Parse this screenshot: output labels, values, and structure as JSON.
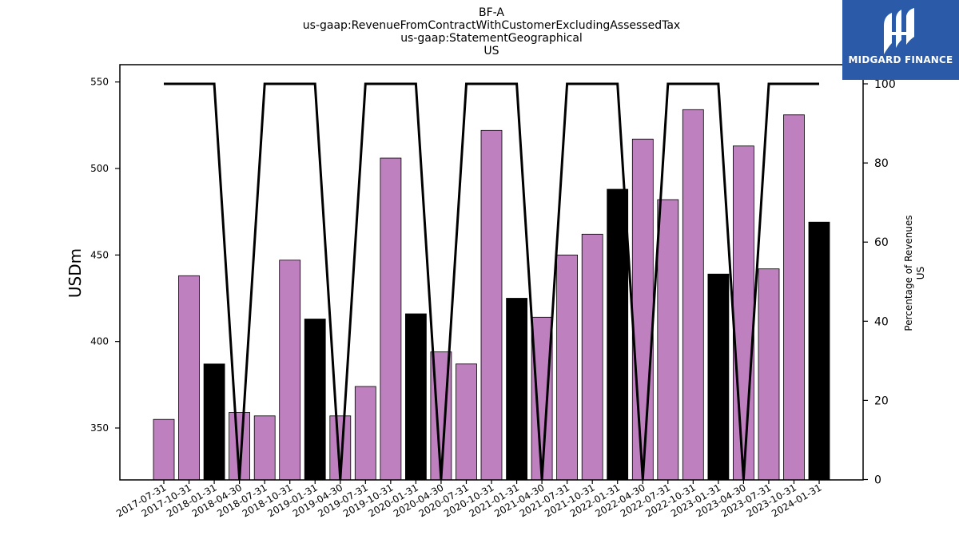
{
  "titles": [
    "BF-A",
    "us-gaap:RevenueFromContractWithCustomerExcludingAssessedTax",
    "us-gaap:StatementGeographical",
    "US"
  ],
  "logo": {
    "text": "MIDGARD FINANCE",
    "icon": "midgard-logo-icon",
    "bg_color": "#2b5aa8"
  },
  "chart_data": {
    "type": "bar",
    "categories": [
      "2017-07-31",
      "2017-10-31",
      "2018-01-31",
      "2018-04-30",
      "2018-07-31",
      "2018-10-31",
      "2019-01-31",
      "2019-04-30",
      "2019-07-31",
      "2019-10-31",
      "2020-01-31",
      "2020-04-30",
      "2020-07-31",
      "2020-10-31",
      "2021-01-31",
      "2021-04-30",
      "2021-07-31",
      "2021-10-31",
      "2022-01-31",
      "2022-04-30",
      "2022-07-31",
      "2022-10-31",
      "2023-01-31",
      "2023-04-30",
      "2023-07-31",
      "2023-10-31",
      "2024-01-31"
    ],
    "values": [
      355,
      438,
      387,
      359,
      357,
      447,
      413,
      357,
      374,
      506,
      416,
      394,
      387,
      522,
      425,
      414,
      450,
      462,
      488,
      517,
      482,
      534,
      439,
      513,
      442,
      531,
      469
    ],
    "bar_colors": [
      "#bf80bf",
      "#bf80bf",
      "#000000",
      "#bf80bf",
      "#bf80bf",
      "#bf80bf",
      "#000000",
      "#bf80bf",
      "#bf80bf",
      "#bf80bf",
      "#000000",
      "#bf80bf",
      "#bf80bf",
      "#bf80bf",
      "#000000",
      "#bf80bf",
      "#bf80bf",
      "#bf80bf",
      "#000000",
      "#bf80bf",
      "#bf80bf",
      "#bf80bf",
      "#000000",
      "#bf80bf",
      "#bf80bf",
      "#bf80bf",
      "#000000"
    ],
    "ylabel": "USDm",
    "ylim": [
      320,
      560
    ],
    "yticks": [
      350,
      400,
      450,
      500,
      550
    ],
    "line": {
      "values": [
        100,
        100,
        100,
        0,
        100,
        100,
        100,
        0,
        100,
        100,
        100,
        0,
        100,
        100,
        100,
        0,
        100,
        100,
        100,
        0,
        100,
        100,
        100,
        0,
        100,
        100,
        100
      ],
      "color": "#000000"
    },
    "y2label": [
      "Percentage of Revenues",
      "US"
    ],
    "y2lim": [
      0,
      100
    ],
    "y2ticks": [
      0,
      20,
      40,
      60,
      80,
      100
    ]
  }
}
